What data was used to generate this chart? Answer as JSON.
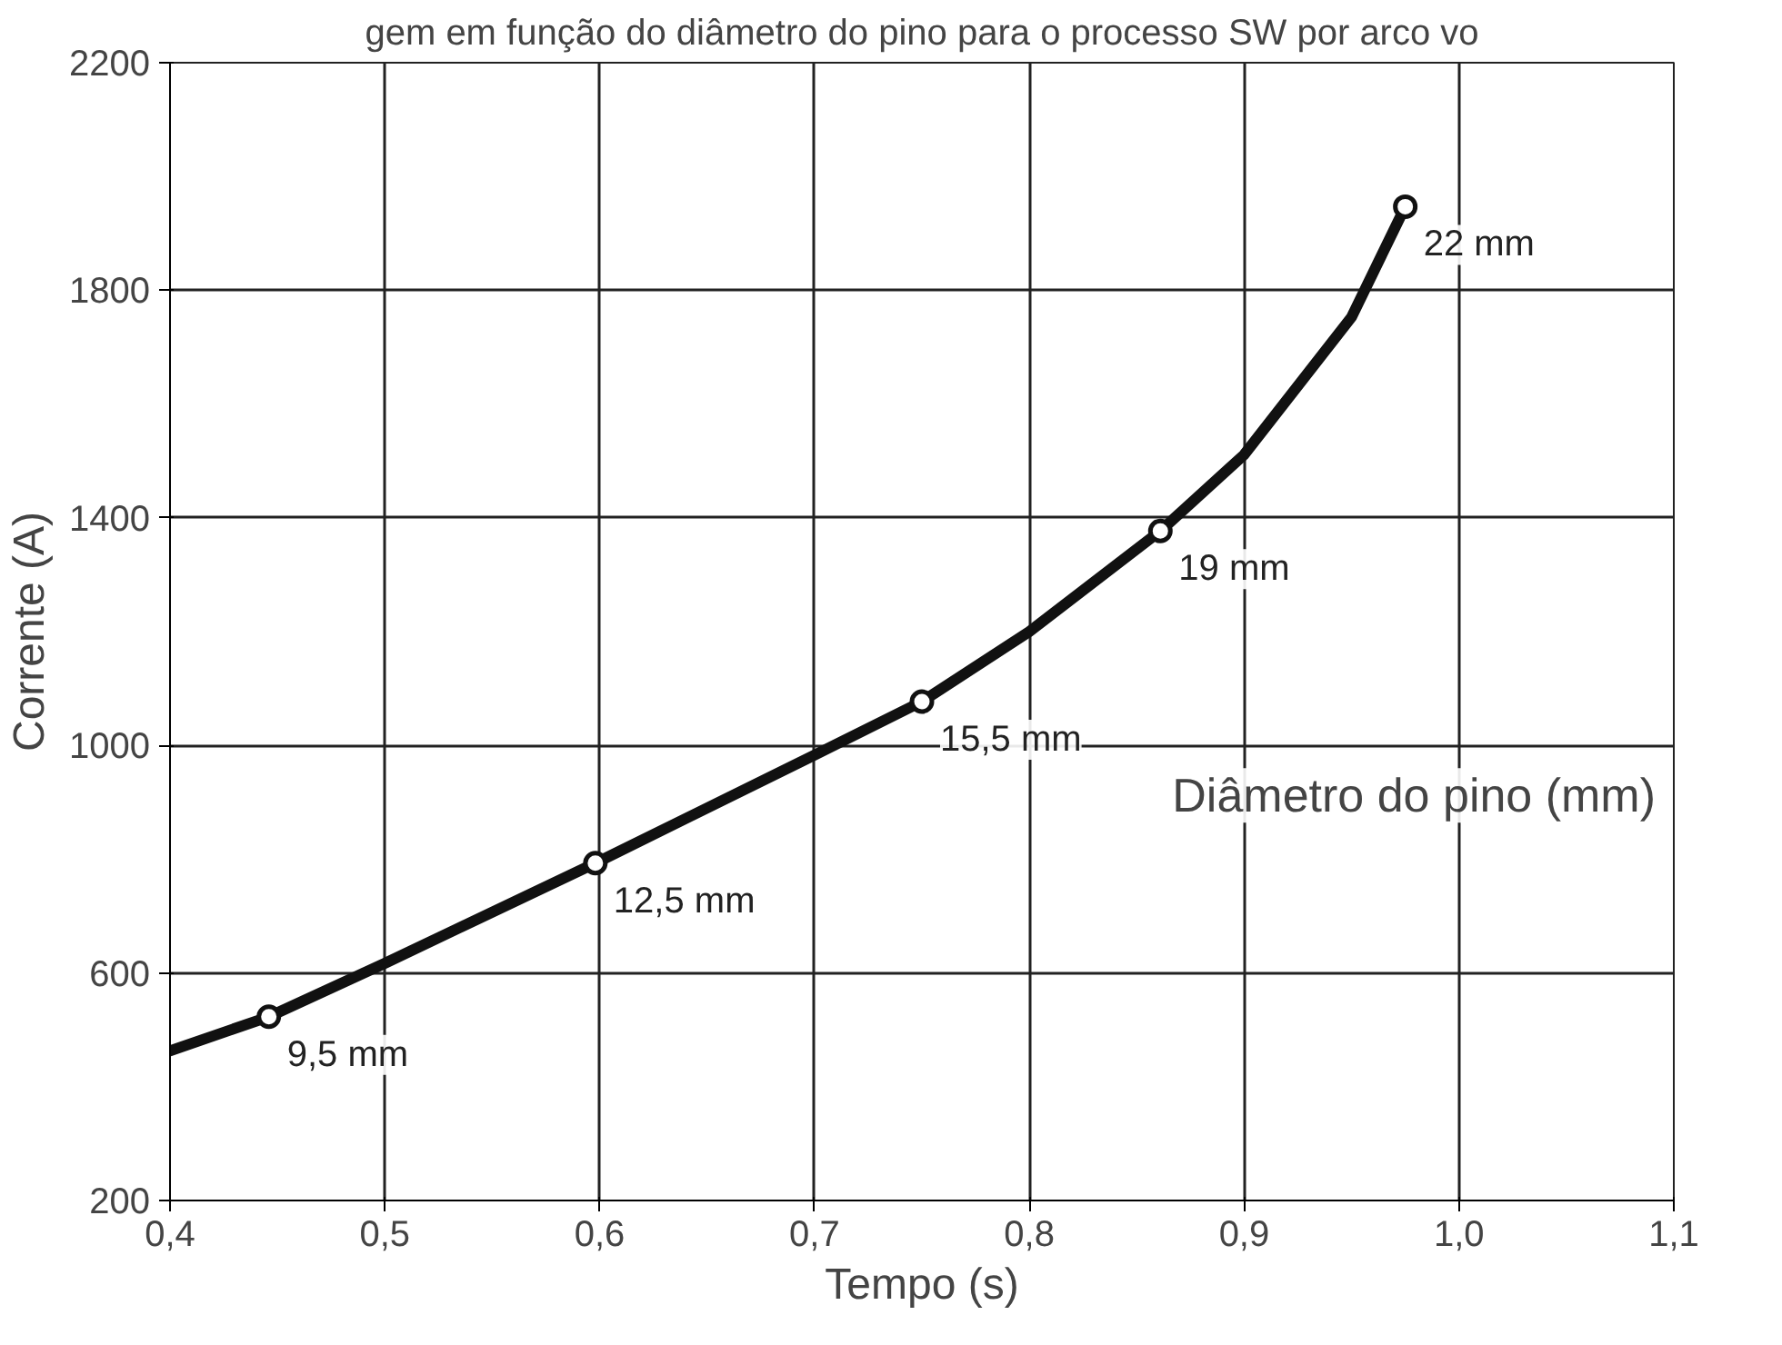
{
  "chart_data": {
    "type": "line",
    "title": "gem em função do diâmetro do pino para o processo SW por arco vo",
    "xlabel": "Tempo (s)",
    "ylabel": "Corrente (A)",
    "series": [
      {
        "color": "#111111",
        "marker": "none",
        "x": [
          0.4,
          0.446,
          0.5,
          0.598,
          0.7,
          0.75,
          0.8,
          0.861,
          0.9,
          0.95,
          0.975
        ],
        "values": [
          463,
          523,
          617,
          793,
          983,
          1077,
          1200,
          1377,
          1511,
          1753,
          1947
        ]
      },
      {
        "type": "scatter",
        "color": "#111111",
        "marker": "circle",
        "x": [
          0.446,
          0.598,
          0.75,
          0.861,
          0.975
        ],
        "values": [
          523,
          793,
          1077,
          1377,
          1947
        ]
      }
    ],
    "annotations": [
      {
        "text": "9,5 mm",
        "x": 0.446,
        "y": 523
      },
      {
        "text": "12,5 mm",
        "x": 0.598,
        "y": 793
      },
      {
        "text": "15,5 mm",
        "x": 0.75,
        "y": 1077
      },
      {
        "text": "19 mm",
        "x": 0.861,
        "y": 1377
      },
      {
        "text": "22 mm",
        "x": 0.975,
        "y": 1947
      },
      "Diâmetro do pino (mm)"
    ],
    "xlim": [
      0.4,
      1.1
    ],
    "ylim": [
      200,
      2200
    ],
    "xticks": [
      {
        "value": 0.4,
        "label": "0,4"
      },
      {
        "value": 0.5,
        "label": "0,5"
      },
      {
        "value": 0.6,
        "label": "0,6"
      },
      {
        "value": 0.7,
        "label": "0,7"
      },
      {
        "value": 0.8,
        "label": "0,8"
      },
      {
        "value": 0.9,
        "label": "0,9"
      },
      {
        "value": 1.0,
        "label": "1,0"
      },
      {
        "value": 1.1,
        "label": "1,1"
      }
    ],
    "yticks": [
      200,
      600,
      1000,
      1400,
      1800,
      2200
    ],
    "grid": true
  }
}
